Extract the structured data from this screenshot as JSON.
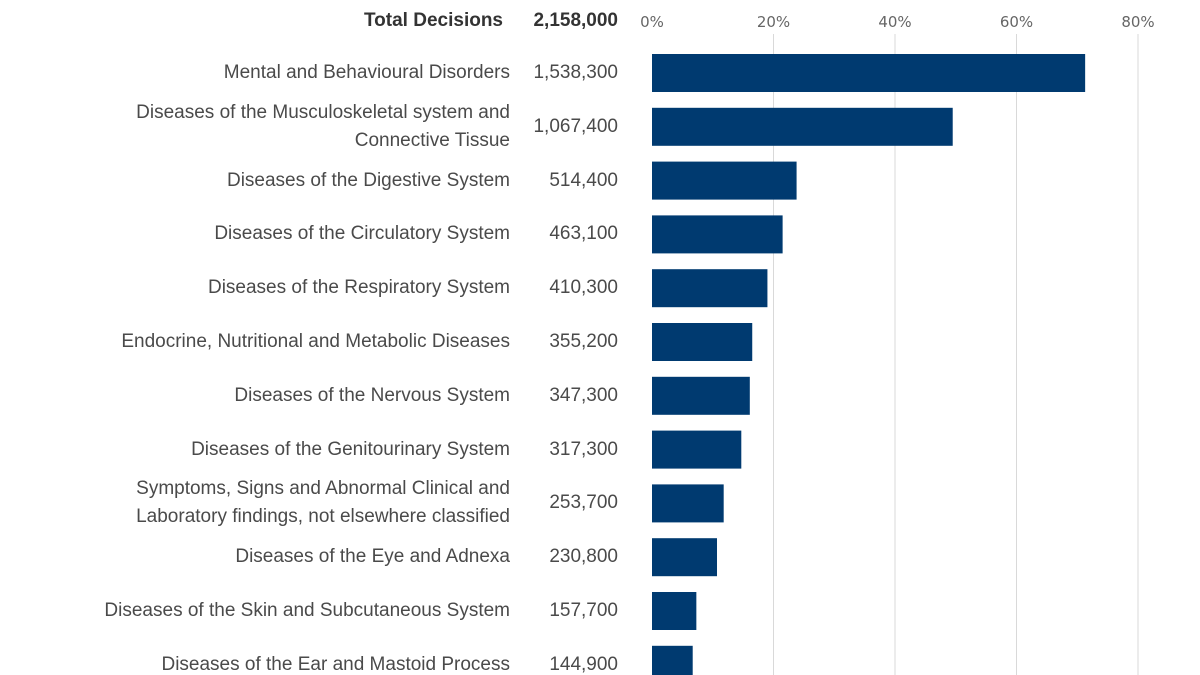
{
  "chart_data": {
    "type": "bar",
    "orientation": "horizontal",
    "header": {
      "label": "Total Decisions",
      "total": "2,158,000"
    },
    "xlim": [
      0,
      80
    ],
    "ticks": [
      0,
      20,
      40,
      60,
      80
    ],
    "tick_labels": [
      "0%",
      "20%",
      "40%",
      "60%",
      "80%"
    ],
    "bar_color": "#003A70",
    "grid_color": "#d9d9d9",
    "categories": [
      "Mental and Behavioural Disorders",
      "Diseases of the Musculoskeletal system and Connective Tissue",
      "Diseases of the Digestive System",
      "Diseases of the Circulatory System",
      "Diseases of the Respiratory System",
      "Endocrine, Nutritional and Metabolic Diseases",
      "Diseases of the Nervous System",
      "Diseases of the Genitourinary System",
      "Symptoms, Signs and Abnormal Clinical and Laboratory findings, not elsewhere classified",
      "Diseases of the Eye and Adnexa",
      "Diseases of the Skin and Subcutaneous System",
      "Diseases of the Ear and Mastoid Process"
    ],
    "category_display": [
      [
        "Mental and Behavioural Disorders"
      ],
      [
        "Diseases of the Musculoskeletal system and",
        "Connective Tissue"
      ],
      [
        "Diseases of the Digestive System"
      ],
      [
        "Diseases of the Circulatory System"
      ],
      [
        "Diseases of the Respiratory System"
      ],
      [
        "Endocrine, Nutritional and Metabolic Diseases"
      ],
      [
        "Diseases of the Nervous System"
      ],
      [
        "Diseases of the Genitourinary System"
      ],
      [
        "Symptoms, Signs and Abnormal Clinical and",
        "Laboratory findings, not elsewhere classified"
      ],
      [
        "Diseases of the Eye and Adnexa"
      ],
      [
        "Diseases of the Skin and Subcutaneous System"
      ],
      [
        "Diseases of the Ear and Mastoid Process"
      ]
    ],
    "counts": [
      "1,538,300",
      "1,067,400",
      "514,400",
      "463,100",
      "410,300",
      "355,200",
      "347,300",
      "317,300",
      "253,700",
      "230,800",
      "157,700",
      "144,900"
    ],
    "values": [
      71.3,
      49.5,
      23.8,
      21.5,
      19.0,
      16.5,
      16.1,
      14.7,
      11.8,
      10.7,
      7.3,
      6.7
    ]
  }
}
